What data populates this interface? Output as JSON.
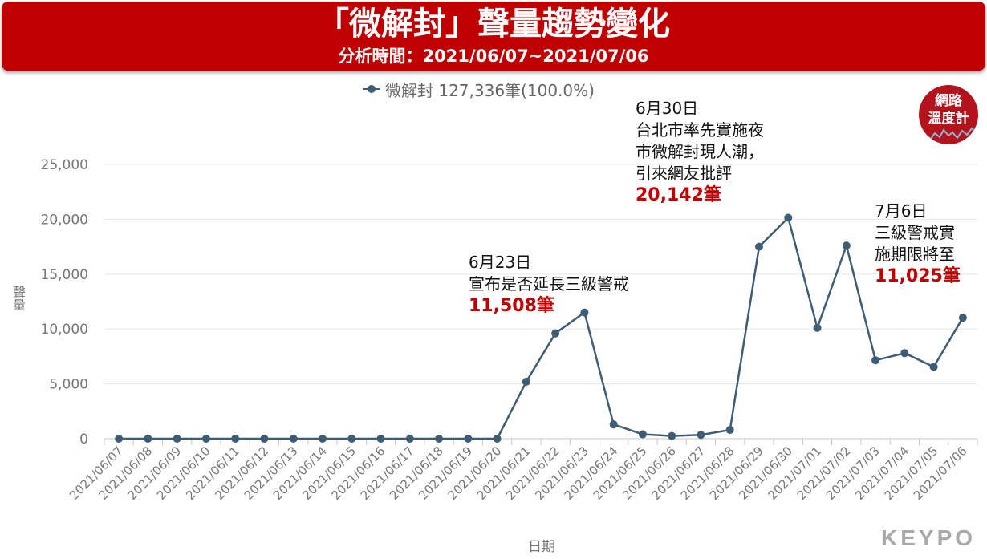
{
  "header": {
    "title": "「微解封」聲量趨勢變化",
    "subtitle": "分析時間：2021/06/07~2021/07/06"
  },
  "badge": {
    "line1": "網路",
    "line2": "溫度計"
  },
  "logo": "KEYPO",
  "colors": {
    "banner": "#c00000",
    "series": "#3e5d74",
    "annotation_value": "#c00000"
  },
  "chart_data": {
    "type": "line",
    "xlabel": "日期",
    "ylabel": "聲量",
    "ylim": [
      0,
      25000
    ],
    "yticks": [
      0,
      5000,
      10000,
      15000,
      20000,
      25000
    ],
    "ytick_labels": [
      "0",
      "5,000",
      "10,000",
      "15,000",
      "20,000",
      "25,000"
    ],
    "grid": "horizontal",
    "legend_position": "top-center",
    "categories": [
      "2021/06/07",
      "2021/06/08",
      "2021/06/09",
      "2021/06/10",
      "2021/06/11",
      "2021/06/12",
      "2021/06/13",
      "2021/06/14",
      "2021/06/15",
      "2021/06/16",
      "2021/06/17",
      "2021/06/18",
      "2021/06/19",
      "2021/06/20",
      "2021/06/21",
      "2021/06/22",
      "2021/06/23",
      "2021/06/24",
      "2021/06/25",
      "2021/06/26",
      "2021/06/27",
      "2021/06/28",
      "2021/06/29",
      "2021/06/30",
      "2021/07/01",
      "2021/07/02",
      "2021/07/03",
      "2021/07/04",
      "2021/07/05",
      "2021/07/06"
    ],
    "series": [
      {
        "name": "微解封 127,336筆(100.0%)",
        "values": [
          0,
          0,
          0,
          0,
          0,
          0,
          0,
          0,
          0,
          0,
          0,
          0,
          0,
          0,
          5200,
          9600,
          11508,
          1300,
          400,
          250,
          350,
          800,
          17500,
          20142,
          10100,
          17600,
          7150,
          7800,
          6550,
          11025
        ]
      }
    ],
    "annotations": [
      {
        "date": "2021/06/23",
        "lines": [
          "6月23日",
          "宣布是否延長三級警戒"
        ],
        "value_text": "11,508筆"
      },
      {
        "date": "2021/06/30",
        "lines": [
          "6月30日",
          "台北市率先實施夜",
          "市微解封現人潮，",
          "引來網友批評"
        ],
        "value_text": "20,142筆"
      },
      {
        "date": "2021/07/06",
        "lines": [
          "7月6日",
          "三級警戒實",
          "施期限將至"
        ],
        "value_text": "11,025筆"
      }
    ]
  }
}
